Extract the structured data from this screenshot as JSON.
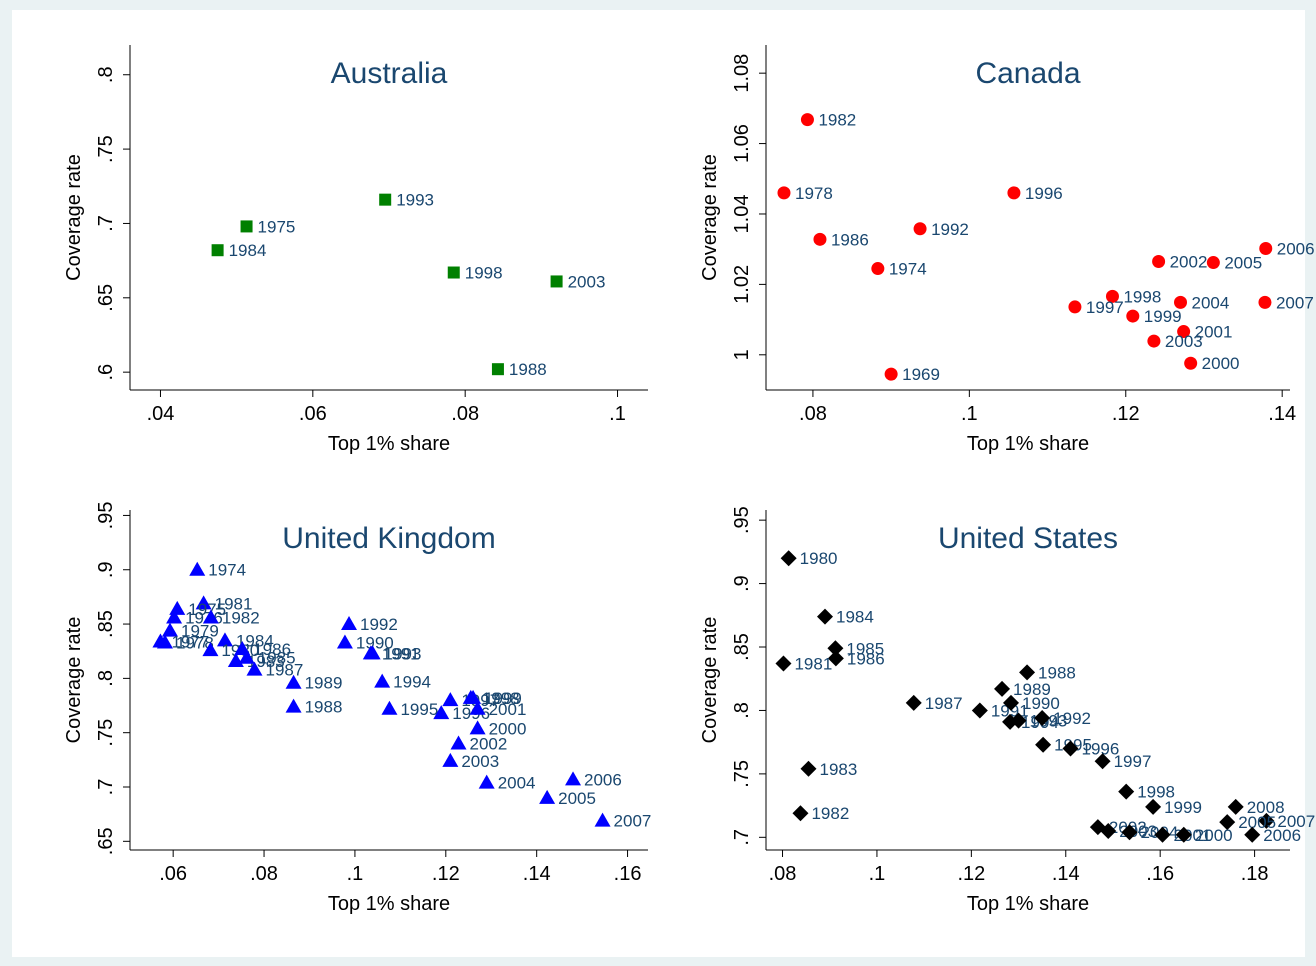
{
  "chart_data": [
    {
      "type": "scatter",
      "title": "Australia",
      "xlabel": "Top 1% share",
      "ylabel": "Coverage rate",
      "xlim": [
        0.036,
        0.104
      ],
      "ylim": [
        0.588,
        0.82
      ],
      "xticks": [
        0.04,
        0.06,
        0.08,
        0.1
      ],
      "xtick_labels": [
        ".04",
        ".06",
        ".08",
        ".1"
      ],
      "yticks": [
        0.6,
        0.65,
        0.7,
        0.75,
        0.8
      ],
      "ytick_labels": [
        ".6",
        ".65",
        ".7",
        ".75",
        ".8"
      ],
      "marker": "square",
      "color": "#008000",
      "label_color": "#1a476f",
      "points": [
        {
          "label": "1975",
          "x": 0.0513,
          "y": 0.698
        },
        {
          "label": "1984",
          "x": 0.0475,
          "y": 0.682
        },
        {
          "label": "1993",
          "x": 0.0695,
          "y": 0.716
        },
        {
          "label": "1998",
          "x": 0.0785,
          "y": 0.667
        },
        {
          "label": "2003",
          "x": 0.092,
          "y": 0.661
        },
        {
          "label": "1988",
          "x": 0.0843,
          "y": 0.602
        }
      ]
    },
    {
      "type": "scatter",
      "title": "Canada",
      "xlabel": "Top 1% share",
      "ylabel": "Coverage rate",
      "xlim": [
        0.074,
        0.141
      ],
      "ylim": [
        0.99,
        1.088
      ],
      "xticks": [
        0.08,
        0.1,
        0.12,
        0.14
      ],
      "xtick_labels": [
        ".08",
        ".1",
        ".12",
        ".14"
      ],
      "yticks": [
        1.0,
        1.02,
        1.04,
        1.06,
        1.08
      ],
      "ytick_labels": [
        "1",
        "1.02",
        "1.04",
        "1.06",
        "1.08"
      ],
      "marker": "circle",
      "color": "#ff0000",
      "label_color": "#1a476f",
      "points": [
        {
          "label": "1982",
          "x": 0.0793,
          "y": 1.0668
        },
        {
          "label": "1978",
          "x": 0.0763,
          "y": 1.046
        },
        {
          "label": "1996",
          "x": 0.1057,
          "y": 1.046
        },
        {
          "label": "1986",
          "x": 0.0809,
          "y": 1.0328
        },
        {
          "label": "1992",
          "x": 0.0937,
          "y": 1.0358
        },
        {
          "label": "1974",
          "x": 0.0883,
          "y": 1.0245
        },
        {
          "label": "2002",
          "x": 0.1242,
          "y": 1.0265
        },
        {
          "label": "2005",
          "x": 0.1312,
          "y": 1.0262
        },
        {
          "label": "2006",
          "x": 0.1379,
          "y": 1.0302
        },
        {
          "label": "1998",
          "x": 0.1183,
          "y": 1.0166
        },
        {
          "label": "1997",
          "x": 0.1135,
          "y": 1.0136
        },
        {
          "label": "2004",
          "x": 0.127,
          "y": 1.0149
        },
        {
          "label": "2007",
          "x": 0.1378,
          "y": 1.0149
        },
        {
          "label": "1999",
          "x": 0.1209,
          "y": 1.011
        },
        {
          "label": "2001",
          "x": 0.1274,
          "y": 1.0066
        },
        {
          "label": "2003",
          "x": 0.1236,
          "y": 1.0039
        },
        {
          "label": "2000",
          "x": 0.1283,
          "y": 0.9976
        },
        {
          "label": "1969",
          "x": 0.09,
          "y": 0.9945
        }
      ]
    },
    {
      "type": "scatter",
      "title": "United Kingdom",
      "xlabel": "Top 1% share",
      "ylabel": "Coverage rate",
      "xlim": [
        0.0505,
        0.1645
      ],
      "ylim": [
        0.642,
        0.955
      ],
      "xticks": [
        0.06,
        0.08,
        0.1,
        0.12,
        0.14,
        0.16
      ],
      "xtick_labels": [
        ".06",
        ".08",
        ".1",
        ".12",
        ".14",
        ".16"
      ],
      "yticks": [
        0.65,
        0.7,
        0.75,
        0.8,
        0.85,
        0.9,
        0.95
      ],
      "ytick_labels": [
        ".65",
        ".7",
        ".75",
        ".8",
        ".85",
        ".9",
        ".95"
      ],
      "marker": "triangle",
      "color": "#0000ff",
      "label_color": "#1a476f",
      "points": [
        {
          "label": "1974",
          "x": 0.0653,
          "y": 0.9
        },
        {
          "label": "1981",
          "x": 0.0667,
          "y": 0.869
        },
        {
          "label": "1975",
          "x": 0.0609,
          "y": 0.864
        },
        {
          "label": "1976",
          "x": 0.0602,
          "y": 0.856
        },
        {
          "label": "1982",
          "x": 0.0683,
          "y": 0.856
        },
        {
          "label": "1979",
          "x": 0.0593,
          "y": 0.844
        },
        {
          "label": "1977",
          "x": 0.0572,
          "y": 0.834
        },
        {
          "label": "1978",
          "x": 0.0582,
          "y": 0.833
        },
        {
          "label": "1984",
          "x": 0.0714,
          "y": 0.835
        },
        {
          "label": "1980",
          "x": 0.0682,
          "y": 0.826
        },
        {
          "label": "1986",
          "x": 0.0752,
          "y": 0.827
        },
        {
          "label": "1983",
          "x": 0.0738,
          "y": 0.816
        },
        {
          "label": "1985",
          "x": 0.0762,
          "y": 0.819
        },
        {
          "label": "1987",
          "x": 0.0779,
          "y": 0.808
        },
        {
          "label": "1989",
          "x": 0.0865,
          "y": 0.796
        },
        {
          "label": "1988",
          "x": 0.0865,
          "y": 0.774
        },
        {
          "label": "1992",
          "x": 0.0987,
          "y": 0.85
        },
        {
          "label": "1990",
          "x": 0.0978,
          "y": 0.833
        },
        {
          "label": "1991",
          "x": 0.1035,
          "y": 0.823
        },
        {
          "label": "1993",
          "x": 0.1039,
          "y": 0.823
        },
        {
          "label": "1994",
          "x": 0.106,
          "y": 0.797
        },
        {
          "label": "1995",
          "x": 0.1076,
          "y": 0.772
        },
        {
          "label": "1996",
          "x": 0.119,
          "y": 0.768
        },
        {
          "label": "1997",
          "x": 0.121,
          "y": 0.78
        },
        {
          "label": "1998",
          "x": 0.1255,
          "y": 0.782
        },
        {
          "label": "1999",
          "x": 0.126,
          "y": 0.782
        },
        {
          "label": "2001",
          "x": 0.127,
          "y": 0.772
        },
        {
          "label": "2000",
          "x": 0.127,
          "y": 0.754
        },
        {
          "label": "2002",
          "x": 0.1228,
          "y": 0.74
        },
        {
          "label": "2003",
          "x": 0.121,
          "y": 0.724
        },
        {
          "label": "2004",
          "x": 0.129,
          "y": 0.704
        },
        {
          "label": "2005",
          "x": 0.1423,
          "y": 0.69
        },
        {
          "label": "2006",
          "x": 0.148,
          "y": 0.707
        },
        {
          "label": "2007",
          "x": 0.1545,
          "y": 0.669
        }
      ]
    },
    {
      "type": "scatter",
      "title": "United States",
      "xlabel": "Top 1% share",
      "ylabel": "Coverage rate",
      "xlim": [
        0.0765,
        0.1875
      ],
      "ylim": [
        0.69,
        0.958
      ],
      "xticks": [
        0.08,
        0.1,
        0.12,
        0.14,
        0.16,
        0.18
      ],
      "xtick_labels": [
        ".08",
        ".1",
        ".12",
        ".14",
        ".16",
        ".18"
      ],
      "yticks": [
        0.7,
        0.75,
        0.8,
        0.85,
        0.9,
        0.95
      ],
      "ytick_labels": [
        ".7",
        ".75",
        ".8",
        ".85",
        ".9",
        ".95"
      ],
      "marker": "diamond",
      "color": "#000000",
      "label_color": "#1a476f",
      "points": [
        {
          "label": "1980",
          "x": 0.0813,
          "y": 0.92
        },
        {
          "label": "1984",
          "x": 0.089,
          "y": 0.874
        },
        {
          "label": "1985",
          "x": 0.0912,
          "y": 0.849
        },
        {
          "label": "1986",
          "x": 0.0913,
          "y": 0.841
        },
        {
          "label": "1981",
          "x": 0.0802,
          "y": 0.837
        },
        {
          "label": "1987",
          "x": 0.1078,
          "y": 0.806
        },
        {
          "label": "1991",
          "x": 0.1218,
          "y": 0.8
        },
        {
          "label": "1988",
          "x": 0.1318,
          "y": 0.83
        },
        {
          "label": "1989",
          "x": 0.1265,
          "y": 0.817
        },
        {
          "label": "1990",
          "x": 0.1284,
          "y": 0.806
        },
        {
          "label": "1994",
          "x": 0.1282,
          "y": 0.791
        },
        {
          "label": "1993",
          "x": 0.13,
          "y": 0.792
        },
        {
          "label": "1992",
          "x": 0.135,
          "y": 0.794
        },
        {
          "label": "1995",
          "x": 0.1352,
          "y": 0.773
        },
        {
          "label": "1996",
          "x": 0.141,
          "y": 0.77
        },
        {
          "label": "1997",
          "x": 0.1478,
          "y": 0.76
        },
        {
          "label": "1983",
          "x": 0.0855,
          "y": 0.754
        },
        {
          "label": "1982",
          "x": 0.0838,
          "y": 0.719
        },
        {
          "label": "1998",
          "x": 0.1528,
          "y": 0.736
        },
        {
          "label": "1999",
          "x": 0.1585,
          "y": 0.724
        },
        {
          "label": "2008",
          "x": 0.176,
          "y": 0.724
        },
        {
          "label": "2007",
          "x": 0.1825,
          "y": 0.713
        },
        {
          "label": "2005",
          "x": 0.1742,
          "y": 0.712
        },
        {
          "label": "2002",
          "x": 0.1468,
          "y": 0.708
        },
        {
          "label": "2003",
          "x": 0.149,
          "y": 0.705
        },
        {
          "label": "2004",
          "x": 0.1535,
          "y": 0.704
        },
        {
          "label": "2001",
          "x": 0.1605,
          "y": 0.702
        },
        {
          "label": "2000",
          "x": 0.165,
          "y": 0.702
        },
        {
          "label": "2006",
          "x": 0.1795,
          "y": 0.702
        }
      ]
    }
  ]
}
